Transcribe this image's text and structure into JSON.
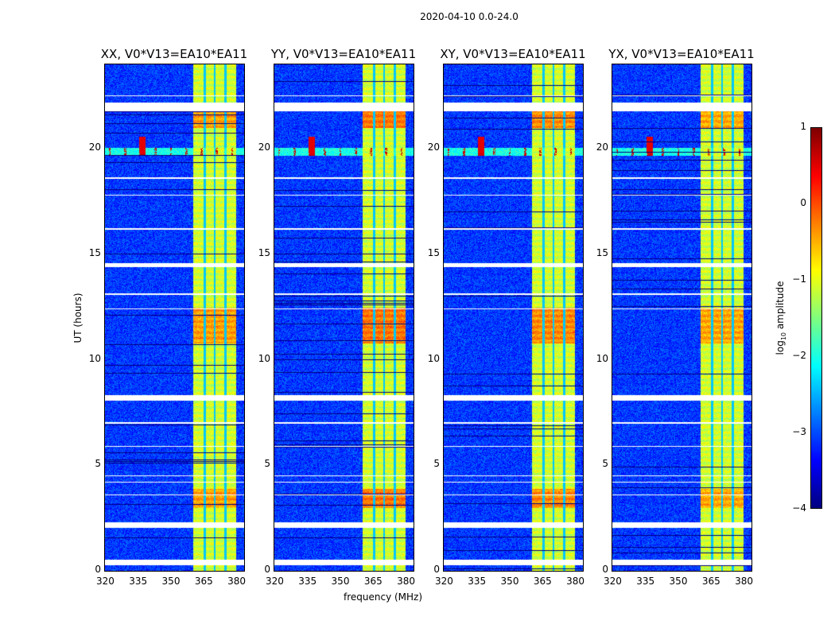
{
  "chart_data": {
    "type": "heatmap",
    "title": "2020-04-10 0.0-24.0",
    "xlabel": "frequency (MHz)",
    "ylabel": "UT (hours)",
    "xlim": [
      320,
      383.6
    ],
    "ylim": [
      0,
      24
    ],
    "xticks": [
      "320",
      "335",
      "350",
      "365",
      "380"
    ],
    "xtick_values": [
      320,
      335,
      350,
      365,
      380
    ],
    "yticks": [
      "0",
      "5",
      "10",
      "15",
      "20"
    ],
    "ytick_values": [
      0,
      5,
      10,
      15,
      20
    ],
    "panels": [
      {
        "title": "XX, V0*V13=EA10*EA11",
        "strong_rfi_boost": 0.6
      },
      {
        "title": "YY, V0*V13=EA10*EA11",
        "strong_rfi_boost": 1.0
      },
      {
        "title": "XY, V0*V13=EA10*EA11",
        "strong_rfi_boost": 0.8
      },
      {
        "title": "YX, V0*V13=EA10*EA11",
        "strong_rfi_boost": 0.5
      }
    ],
    "colorbar": {
      "label": "log10 amplitude",
      "label_main": "log",
      "label_sub": "10",
      "label_rest": " amplitude",
      "range": [
        -4,
        1
      ],
      "ticks": [
        "1",
        "0",
        "−1",
        "−2",
        "−3",
        "−4"
      ],
      "tick_values": [
        1,
        0,
        -1,
        -2,
        -3,
        -4
      ],
      "colormap": "jet"
    },
    "background_level": -3.1,
    "rfi_band_MHz": [
      360.3,
      379.7
    ],
    "rfi_band_dividers_MHz": [
      365.3,
      370,
      375
    ],
    "flagged_UT_ranges": [
      [
        21.8,
        22.2
      ],
      [
        14.4,
        14.6
      ],
      [
        8.1,
        8.35
      ],
      [
        2.05,
        2.3
      ],
      [
        0.3,
        0.55
      ],
      [
        7.0,
        7.05
      ],
      [
        5.9,
        5.95
      ],
      [
        4.5,
        4.55
      ],
      [
        4.2,
        4.25
      ],
      [
        3.6,
        3.65
      ],
      [
        17.8,
        17.85
      ],
      [
        16.2,
        16.25
      ],
      [
        13.1,
        13.15
      ],
      [
        12.4,
        12.45
      ],
      [
        18.6,
        18.65
      ],
      [
        22.5,
        22.55
      ]
    ],
    "enhanced_UT_ranges": [
      [
        10.8,
        12.5
      ],
      [
        3.0,
        3.9
      ],
      [
        21.0,
        21.8
      ]
    ],
    "rfi_time_line_UT": [
      19.7,
      20.05
    ]
  }
}
